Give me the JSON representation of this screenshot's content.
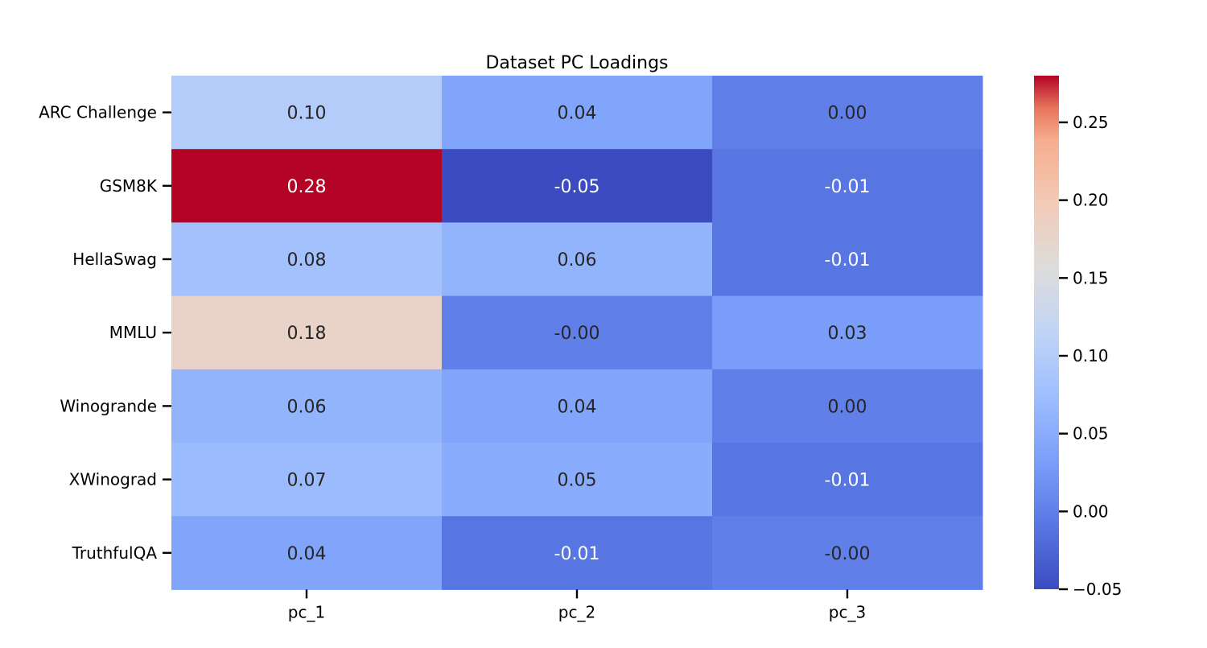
{
  "chart_data": {
    "type": "heatmap",
    "title": "Dataset PC Loadings",
    "xlabel": "",
    "ylabel": "",
    "columns": [
      "pc_1",
      "pc_2",
      "pc_3"
    ],
    "rows": [
      "ARC Challenge",
      "GSM8K",
      "HellaSwag",
      "MMLU",
      "Winogrande",
      "XWinograd",
      "TruthfulQA"
    ],
    "values": [
      [
        0.1,
        0.04,
        0.0
      ],
      [
        0.28,
        -0.05,
        -0.01
      ],
      [
        0.08,
        0.06,
        -0.01
      ],
      [
        0.18,
        -0.0,
        0.03
      ],
      [
        0.06,
        0.04,
        0.0
      ],
      [
        0.07,
        0.05,
        -0.01
      ],
      [
        0.04,
        -0.01,
        -0.0
      ]
    ],
    "cell_labels": [
      [
        "0.10",
        "0.04",
        "0.00"
      ],
      [
        "0.28",
        "-0.05",
        "-0.01"
      ],
      [
        "0.08",
        "0.06",
        "-0.01"
      ],
      [
        "0.18",
        "-0.00",
        "0.03"
      ],
      [
        "0.06",
        "0.04",
        "0.00"
      ],
      [
        "0.07",
        "0.05",
        "-0.01"
      ],
      [
        "0.04",
        "-0.01",
        "-0.00"
      ]
    ],
    "colormap": "coolwarm",
    "colorbar": {
      "range": [
        -0.05,
        0.28
      ],
      "ticks": [
        -0.05,
        0.0,
        0.05,
        0.1,
        0.15,
        0.2,
        0.25
      ],
      "tick_labels": [
        "−0.05",
        "0.00",
        "0.05",
        "0.10",
        "0.15",
        "0.20",
        "0.25"
      ]
    }
  }
}
